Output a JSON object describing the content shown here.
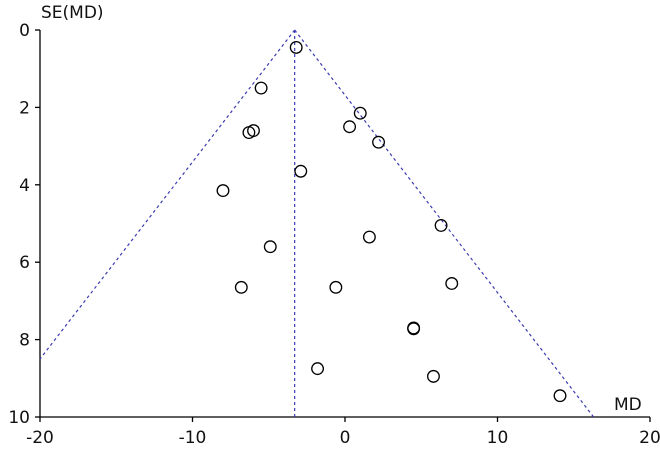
{
  "chart_data": {
    "type": "scatter",
    "title": "",
    "xlabel": "MD",
    "ylabel": "SE(MD)",
    "xlim": [
      -20,
      20
    ],
    "ylim": [
      0,
      10
    ],
    "y_inverted": true,
    "x_ticks": [
      -20,
      -10,
      0,
      10,
      20
    ],
    "x_tick_labels": [
      "-20",
      "-10",
      "0",
      "10",
      "20"
    ],
    "y_ticks": [
      0,
      2,
      4,
      6,
      8,
      10
    ],
    "y_tick_labels": [
      "0",
      "2",
      "4",
      "6",
      "8",
      "10"
    ],
    "grid": false,
    "pooled_estimate": -3.3,
    "funnel": {
      "apex": [
        -3.3,
        0
      ],
      "left_end": [
        -20,
        8.5
      ],
      "right_end": [
        16.3,
        10
      ],
      "style": "dotted",
      "color": "#3b3bb0"
    },
    "points": [
      {
        "x": -3.2,
        "y": 0.45
      },
      {
        "x": -5.5,
        "y": 1.5
      },
      {
        "x": 1.0,
        "y": 2.15
      },
      {
        "x": 0.3,
        "y": 2.5
      },
      {
        "x": -6.0,
        "y": 2.6
      },
      {
        "x": -6.3,
        "y": 2.65
      },
      {
        "x": 2.2,
        "y": 2.9
      },
      {
        "x": -2.9,
        "y": 3.65
      },
      {
        "x": -8.0,
        "y": 4.15
      },
      {
        "x": 6.3,
        "y": 5.05
      },
      {
        "x": 1.6,
        "y": 5.35
      },
      {
        "x": -4.9,
        "y": 5.6
      },
      {
        "x": -6.8,
        "y": 6.65
      },
      {
        "x": -0.6,
        "y": 6.65
      },
      {
        "x": 7.0,
        "y": 6.55
      },
      {
        "x": 4.5,
        "y": 7.7
      },
      {
        "x": 4.5,
        "y": 7.72
      },
      {
        "x": -1.8,
        "y": 8.75
      },
      {
        "x": 5.8,
        "y": 8.95
      },
      {
        "x": 14.1,
        "y": 9.45
      }
    ],
    "colors": {
      "axis": "#000000",
      "funnel": "#3b3bb0",
      "marker": "#000000"
    }
  }
}
